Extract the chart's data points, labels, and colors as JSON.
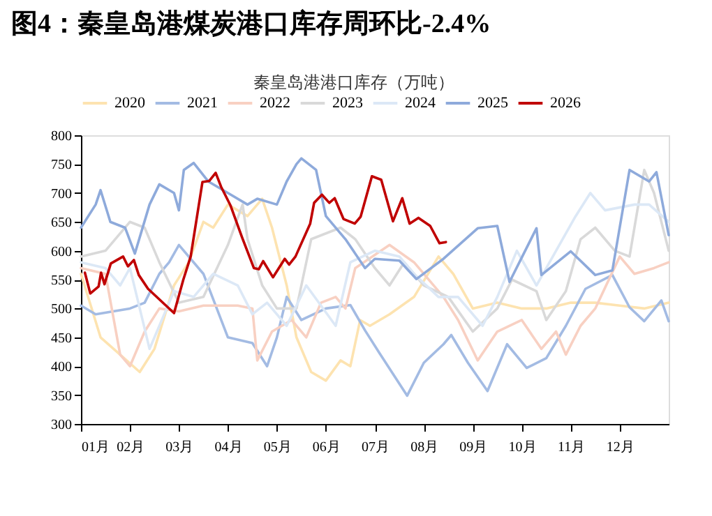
{
  "chart_data": {
    "type": "line",
    "title": "图4：秦皇岛港煤炭港口库存周环比-2.4%",
    "subtitle": "秦皇岛港港口库存（万吨）",
    "xlim": [
      1,
      13
    ],
    "xticks": [
      {
        "value": 1,
        "label": "01月"
      },
      {
        "value": 2,
        "label": "02月"
      },
      {
        "value": 3,
        "label": "03月"
      },
      {
        "value": 4,
        "label": "04月"
      },
      {
        "value": 5,
        "label": "05月"
      },
      {
        "value": 6,
        "label": "06月"
      },
      {
        "value": 7,
        "label": "07月"
      },
      {
        "value": 8,
        "label": "08月"
      },
      {
        "value": 9,
        "label": "09月"
      },
      {
        "value": 10,
        "label": "10月"
      },
      {
        "value": 11,
        "label": "11月"
      },
      {
        "value": 12,
        "label": "12月"
      }
    ],
    "ylim": [
      300,
      800
    ],
    "yticks": [
      300,
      350,
      400,
      450,
      500,
      550,
      600,
      650,
      700,
      750,
      800
    ],
    "grid": false,
    "legend": "top",
    "series": [
      {
        "name": "2020",
        "color": "#fde3b0",
        "x": [
          1,
          1.4,
          1.8,
          2.2,
          2.5,
          2.9,
          3.2,
          3.5,
          3.7,
          4.0,
          4.4,
          4.7,
          4.9,
          5.2,
          5.4,
          5.7,
          6.0,
          6.3,
          6.5,
          6.7,
          6.9,
          7.3,
          7.8,
          8.3,
          8.6,
          9.0,
          9.5,
          10,
          10.5,
          11,
          11.5,
          12,
          12.5,
          13
        ],
        "values": [
          560,
          450,
          420,
          390,
          430,
          540,
          580,
          650,
          640,
          680,
          660,
          690,
          640,
          540,
          450,
          390,
          375,
          410,
          400,
          480,
          470,
          490,
          520,
          590,
          560,
          500,
          510,
          500,
          500,
          510,
          510,
          505,
          500,
          510
        ]
      },
      {
        "name": "2021",
        "color": "#a3bbe3",
        "x": [
          1,
          1.3,
          2.0,
          2.3,
          2.6,
          2.8,
          3.0,
          3.5,
          4.0,
          4.5,
          4.8,
          5.0,
          5.2,
          5.5,
          6.0,
          6.5,
          6.8,
          7.1,
          7.66,
          8.0,
          8.4,
          8.56,
          8.9,
          9.3,
          9.7,
          10.1,
          10.5,
          10.9,
          11.3,
          11.85,
          12.2,
          12.5,
          12.85,
          13
        ],
        "values": [
          505,
          490,
          500,
          510,
          560,
          580,
          610,
          560,
          450,
          440,
          400,
          450,
          520,
          480,
          500,
          506,
          462,
          422,
          349,
          406,
          438,
          454,
          406,
          357,
          438,
          397,
          414,
          470,
          534,
          558,
          502,
          478,
          514,
          478
        ]
      },
      {
        "name": "2022",
        "color": "#f8d0c2",
        "x": [
          1,
          1.5,
          1.8,
          2.0,
          2.3,
          2.6,
          3,
          3.5,
          4.2,
          4.5,
          4.6,
          4.9,
          5.3,
          5.6,
          5.9,
          6.2,
          6.4,
          6.6,
          7.3,
          7.8,
          8.4,
          8.7,
          9.1,
          9.5,
          10.0,
          10.4,
          10.7,
          10.9,
          11.2,
          11.5,
          12.0,
          12.3,
          12.7,
          13
        ],
        "values": [
          570,
          560,
          420,
          400,
          460,
          500,
          495,
          505,
          505,
          500,
          410,
          460,
          480,
          450,
          510,
          520,
          500,
          570,
          610,
          580,
          520,
          480,
          410,
          460,
          480,
          430,
          460,
          420,
          470,
          500,
          590,
          560,
          570,
          580
        ]
      },
      {
        "name": "2023",
        "color": "#d9d9d9",
        "x": [
          1,
          1.5,
          2.0,
          2.3,
          2.6,
          3.0,
          3.5,
          4.0,
          4.3,
          4.4,
          4.7,
          5.0,
          5.4,
          5.7,
          6.0,
          6.3,
          6.6,
          7.0,
          7.3,
          7.6,
          8.0,
          8.5,
          9.0,
          9.5,
          9.8,
          10.3,
          10.5,
          10.9,
          11.2,
          11.5,
          11.9,
          12.2,
          12.5,
          12.7,
          13
        ],
        "values": [
          590,
          600,
          650,
          640,
          580,
          510,
          520,
          610,
          680,
          620,
          540,
          500,
          500,
          620,
          630,
          640,
          620,
          570,
          540,
          580,
          540,
          520,
          460,
          500,
          550,
          530,
          480,
          530,
          620,
          640,
          600,
          590,
          740,
          700,
          600
        ]
      },
      {
        "name": "2024",
        "color": "#dce8f6",
        "x": [
          1,
          1.5,
          1.8,
          2.0,
          2.4,
          2.9,
          3.3,
          3.7,
          4.2,
          4.5,
          4.8,
          5.2,
          5.6,
          6.2,
          6.5,
          7.0,
          7.5,
          7.8,
          8.3,
          8.7,
          9.2,
          9.5,
          9.9,
          10.3,
          10.7,
          11.1,
          11.4,
          11.7,
          12.3,
          12.6,
          13
        ],
        "values": [
          580,
          570,
          540,
          570,
          430,
          530,
          520,
          560,
          540,
          490,
          510,
          470,
          540,
          470,
          580,
          600,
          590,
          560,
          520,
          520,
          470,
          520,
          600,
          540,
          600,
          660,
          700,
          670,
          680,
          680,
          650
        ]
      },
      {
        "name": "2025",
        "color": "#8eaadb",
        "x": [
          1,
          1.3,
          1.4,
          1.6,
          1.9,
          2.1,
          2.4,
          2.6,
          2.9,
          3.0,
          3.1,
          3.3,
          3.6,
          4.0,
          4.4,
          4.6,
          5.0,
          5.2,
          5.4,
          5.5,
          5.8,
          6.0,
          6.4,
          6.8,
          7.0,
          7.5,
          7.85,
          8.4,
          9.1,
          9.5,
          9.75,
          10.3,
          10.4,
          11.0,
          11.5,
          11.85,
          12.2,
          12.6,
          12.75,
          13
        ],
        "values": [
          640,
          680,
          705,
          650,
          640,
          595,
          680,
          715,
          700,
          670,
          740,
          752,
          720,
          700,
          680,
          690,
          680,
          720,
          750,
          760,
          740,
          660,
          620,
          570,
          586,
          583,
          551,
          586,
          639,
          643,
          546,
          639,
          558,
          599,
          558,
          566,
          740,
          720,
          736,
          627
        ]
      },
      {
        "name": "2026",
        "color": "#c00000",
        "x": [
          1.08,
          1.19,
          1.36,
          1.41,
          1.48,
          1.61,
          1.86,
          1.96,
          2.08,
          2.18,
          2.37,
          2.9,
          3.09,
          3.24,
          3.48,
          3.62,
          3.75,
          3.86,
          4.05,
          4.29,
          4.53,
          4.63,
          4.72,
          4.92,
          5.16,
          5.25,
          5.38,
          5.68,
          5.76,
          5.92,
          6.07,
          6.18,
          6.36,
          6.59,
          6.71,
          6.94,
          7.13,
          7.37,
          7.56,
          7.71,
          7.89,
          8.13,
          8.32,
          8.45
        ],
        "values": [
          562,
          526,
          538,
          562,
          542,
          578,
          590,
          573,
          584,
          558,
          534,
          492,
          550,
          590,
          719,
          721,
          735,
          711,
          679,
          623,
          570,
          568,
          582,
          554,
          586,
          576,
          590,
          647,
          683,
          697,
          683,
          691,
          655,
          647,
          659,
          729,
          723,
          651,
          691,
          647,
          657,
          643,
          613,
          615
        ]
      }
    ]
  }
}
